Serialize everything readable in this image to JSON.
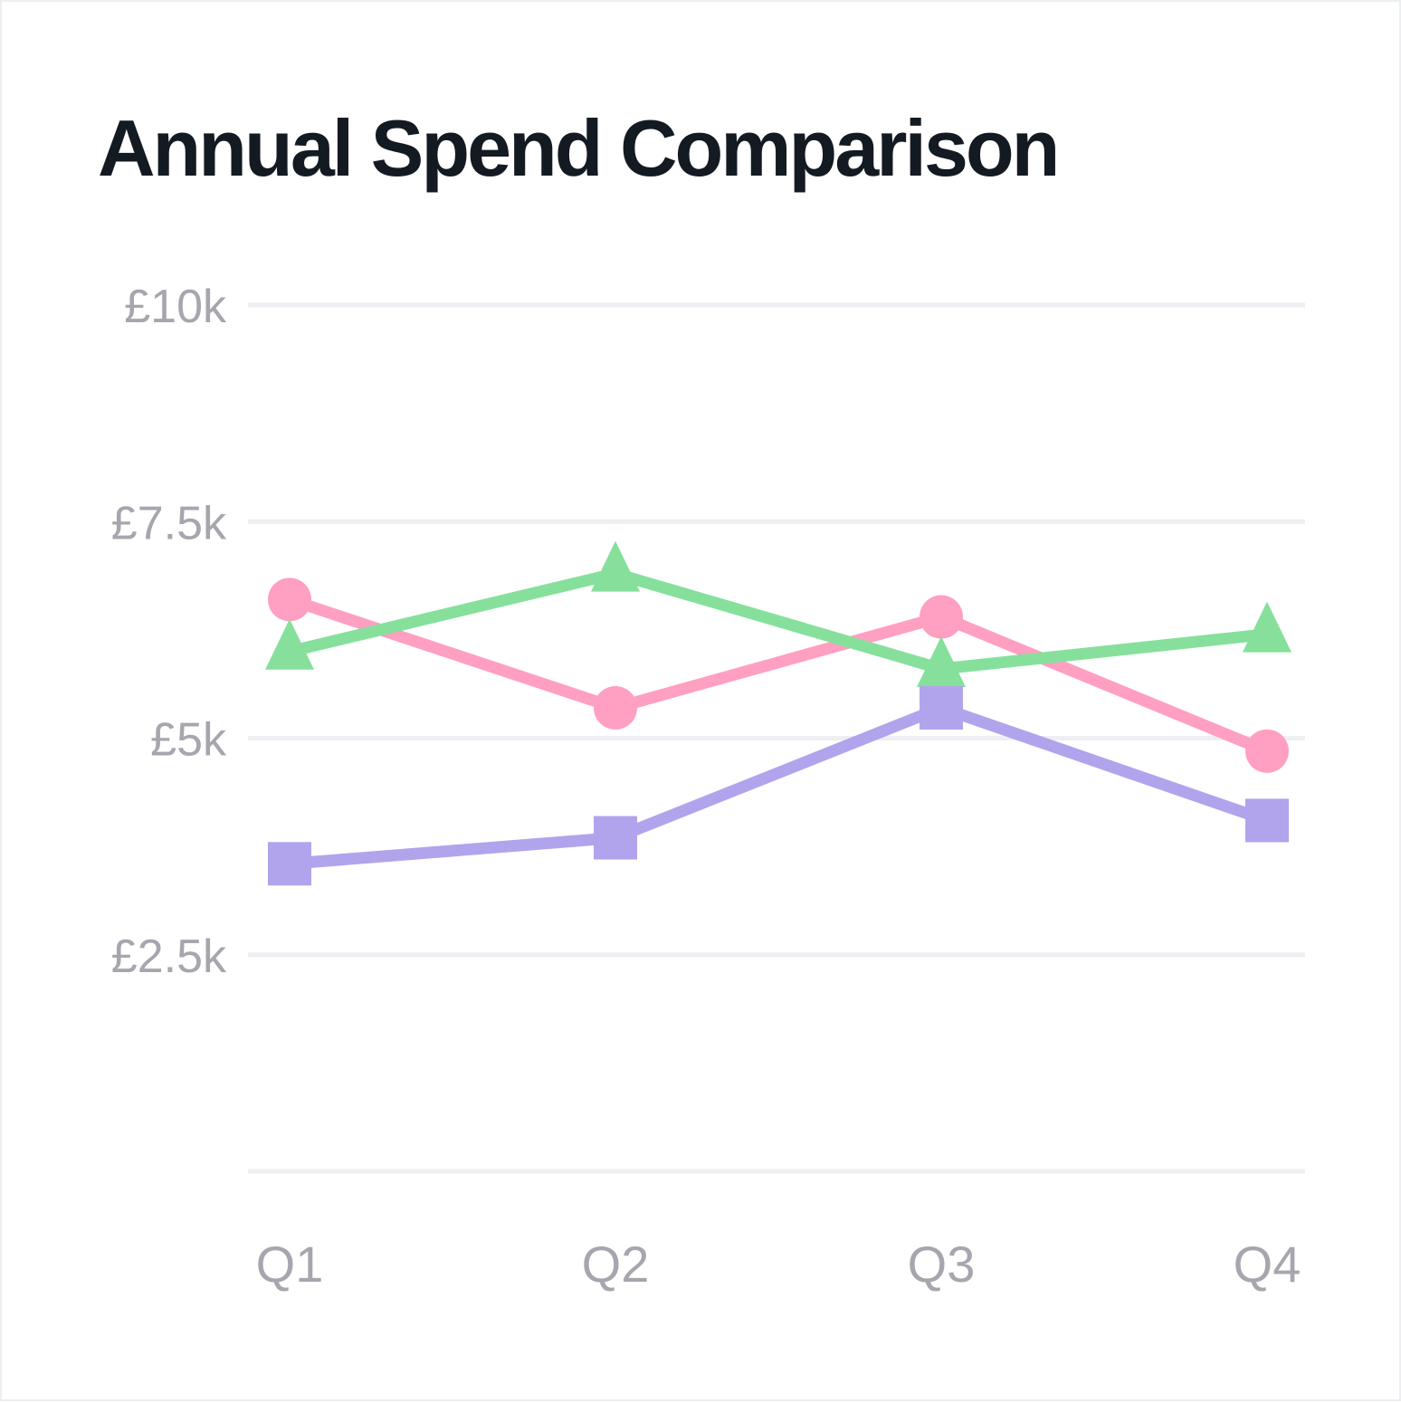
{
  "chart_data": {
    "type": "line",
    "title": "Annual Spend Comparison",
    "categories": [
      "Q1",
      "Q2",
      "Q3",
      "Q4"
    ],
    "yticks": [
      0,
      2500,
      5000,
      7500,
      10000
    ],
    "ytick_labels": [
      "",
      "£2.5k",
      "£5k",
      "£7.5k",
      "£10k"
    ],
    "ylim": [
      0,
      10000
    ],
    "grid": true,
    "legend": "none",
    "series": [
      {
        "color": "#ff9fc2",
        "marker": "circle",
        "values": [
          6600,
          5350,
          6400,
          4850
        ]
      },
      {
        "color": "#86e09c",
        "marker": "triangle",
        "values": [
          6000,
          6900,
          5800,
          6200
        ]
      },
      {
        "color": "#b1a4ec",
        "marker": "square",
        "values": [
          3550,
          3850,
          5350,
          4050
        ]
      }
    ]
  }
}
